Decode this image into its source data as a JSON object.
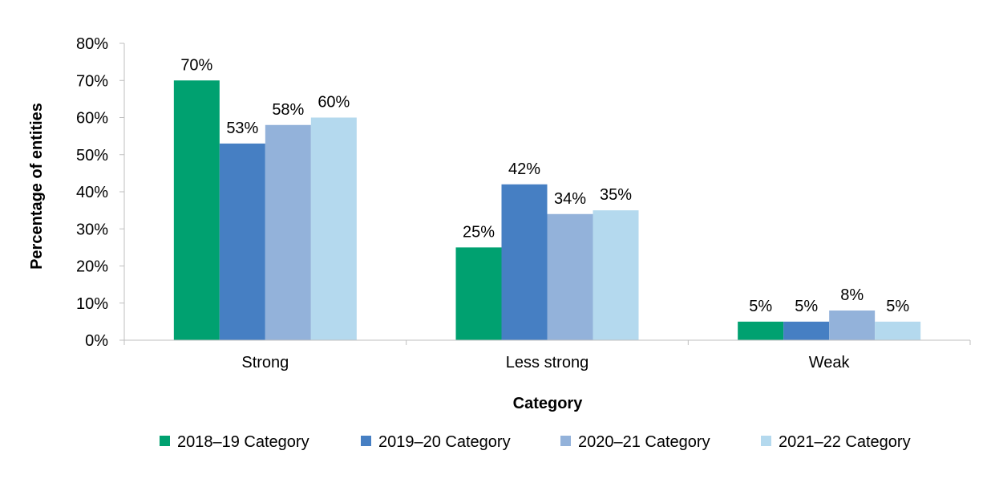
{
  "chart_data": {
    "type": "bar",
    "title": "",
    "xlabel": "Category",
    "ylabel": "Percentage of entities",
    "ylim": [
      0,
      80
    ],
    "ytick_step": 10,
    "tick_format": "{v}%",
    "categories": [
      "Strong",
      "Less strong",
      "Weak"
    ],
    "series": [
      {
        "name": "2018–19 Category",
        "color": "#00a170",
        "values": [
          70,
          25,
          5
        ],
        "labels": [
          "70%",
          "25%",
          "5%"
        ]
      },
      {
        "name": "2019–20 Category",
        "color": "#467fc3",
        "values": [
          53,
          42,
          5
        ],
        "labels": [
          "53%",
          "42%",
          "5%"
        ]
      },
      {
        "name": "2020–21 Category",
        "color": "#93b2da",
        "values": [
          58,
          34,
          8
        ],
        "labels": [
          "58%",
          "34%",
          "8%"
        ]
      },
      {
        "name": "2021–22 Category",
        "color": "#b4d9ee",
        "values": [
          60,
          35,
          5
        ],
        "labels": [
          "60%",
          "35%",
          "5%"
        ]
      }
    ],
    "grid": false,
    "legend_position": "bottom"
  }
}
